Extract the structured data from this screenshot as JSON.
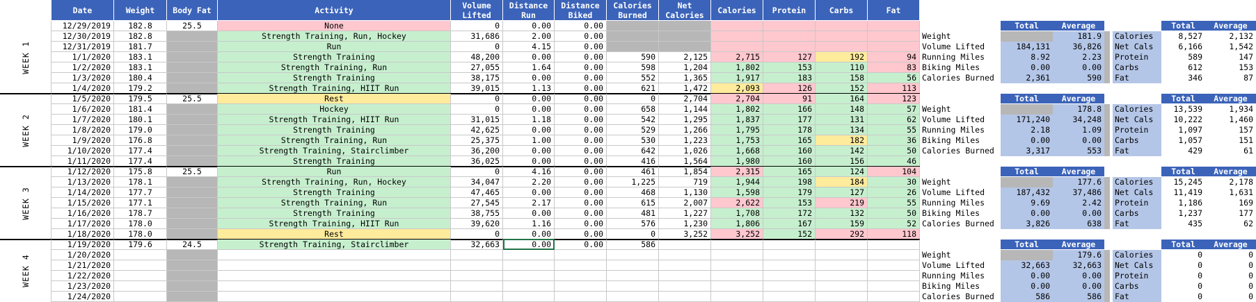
{
  "columns": [
    "Date",
    "Weight",
    "Body Fat",
    "Activity",
    "Volume\nLifted",
    "Distance\nRun",
    "Distance\nBiked",
    "Calories\nBurned",
    "Net\nCalories",
    "Calories",
    "Protein",
    "Carbs",
    "Fat"
  ],
  "weeks": [
    {
      "label": "WEEK 1",
      "rows": [
        {
          "date": "12/29/2019",
          "weight": "182.8",
          "bodyfat": "25.5",
          "activity": "None",
          "act_color": "red",
          "vol": "0",
          "run": "0.00",
          "bike": "0.00",
          "burn": "",
          "net": "",
          "cal": "",
          "pro": "",
          "carb": "",
          "fat": "",
          "burn_gray": true,
          "net_gray": true,
          "macro_colors": [
            "red",
            "red",
            "red",
            "red"
          ]
        },
        {
          "date": "12/30/2019",
          "weight": "182.8",
          "bodyfat": "",
          "activity": "Strength Training, Run, Hockey",
          "act_color": "green",
          "vol": "31,686",
          "run": "2.00",
          "bike": "0.00",
          "burn": "",
          "net": "",
          "cal": "",
          "pro": "",
          "carb": "",
          "fat": "",
          "burn_gray": true,
          "net_gray": true,
          "macro_colors": [
            "red",
            "red",
            "red",
            "red"
          ]
        },
        {
          "date": "12/31/2019",
          "weight": "181.7",
          "bodyfat": "",
          "activity": "Run",
          "act_color": "green",
          "vol": "0",
          "run": "4.15",
          "bike": "0.00",
          "burn": "",
          "net": "",
          "cal": "",
          "pro": "",
          "carb": "",
          "fat": "",
          "burn_gray": true,
          "net_gray": true,
          "macro_colors": [
            "red",
            "red",
            "red",
            "red"
          ]
        },
        {
          "date": "1/1/2020",
          "weight": "183.1",
          "bodyfat": "",
          "activity": "Strength Training",
          "act_color": "green",
          "vol": "48,200",
          "run": "0.00",
          "bike": "0.00",
          "burn": "590",
          "net": "2,125",
          "cal": "2,715",
          "pro": "127",
          "carb": "192",
          "fat": "94",
          "macro_colors": [
            "red",
            "red",
            "yellow",
            "red"
          ]
        },
        {
          "date": "1/2/2020",
          "weight": "183.1",
          "bodyfat": "",
          "activity": "Strength Training, Run",
          "act_color": "green",
          "vol": "27,055",
          "run": "1.64",
          "bike": "0.00",
          "burn": "598",
          "net": "1,204",
          "cal": "1,802",
          "pro": "153",
          "carb": "110",
          "fat": "83",
          "macro_colors": [
            "green",
            "green",
            "green",
            "red"
          ]
        },
        {
          "date": "1/3/2020",
          "weight": "180.4",
          "bodyfat": "",
          "activity": "Strength Training",
          "act_color": "green",
          "vol": "38,175",
          "run": "0.00",
          "bike": "0.00",
          "burn": "552",
          "net": "1,365",
          "cal": "1,917",
          "pro": "183",
          "carb": "158",
          "fat": "56",
          "macro_colors": [
            "green",
            "green",
            "green",
            "green"
          ]
        },
        {
          "date": "1/4/2020",
          "weight": "179.2",
          "bodyfat": "",
          "activity": "Strength Training, HIIT Run",
          "act_color": "green",
          "vol": "39,015",
          "run": "1.13",
          "bike": "0.00",
          "burn": "621",
          "net": "1,472",
          "cal": "2,093",
          "pro": "126",
          "carb": "152",
          "fat": "113",
          "macro_colors": [
            "yellow",
            "red",
            "green",
            "red"
          ]
        }
      ]
    },
    {
      "label": "WEEK 2",
      "rows": [
        {
          "date": "1/5/2020",
          "weight": "179.5",
          "bodyfat": "25.5",
          "activity": "Rest",
          "act_color": "yellow",
          "vol": "0",
          "run": "0.00",
          "bike": "0.00",
          "burn": "0",
          "net": "2,704",
          "cal": "2,704",
          "pro": "91",
          "carb": "164",
          "fat": "123",
          "macro_colors": [
            "red",
            "red",
            "green",
            "red"
          ]
        },
        {
          "date": "1/6/2020",
          "weight": "181.4",
          "bodyfat": "",
          "activity": "Hockey",
          "act_color": "green",
          "vol": "0",
          "run": "0.00",
          "bike": "0.00",
          "burn": "658",
          "net": "1,144",
          "cal": "1,802",
          "pro": "166",
          "carb": "148",
          "fat": "57",
          "macro_colors": [
            "green",
            "green",
            "green",
            "green"
          ]
        },
        {
          "date": "1/7/2020",
          "weight": "180.1",
          "bodyfat": "",
          "activity": "Strength Training, HIIT Run",
          "act_color": "green",
          "vol": "31,015",
          "run": "1.18",
          "bike": "0.00",
          "burn": "542",
          "net": "1,295",
          "cal": "1,837",
          "pro": "177",
          "carb": "131",
          "fat": "62",
          "macro_colors": [
            "green",
            "green",
            "green",
            "green"
          ]
        },
        {
          "date": "1/8/2020",
          "weight": "179.0",
          "bodyfat": "",
          "activity": "Strength Training",
          "act_color": "green",
          "vol": "42,625",
          "run": "0.00",
          "bike": "0.00",
          "burn": "529",
          "net": "1,266",
          "cal": "1,795",
          "pro": "178",
          "carb": "134",
          "fat": "55",
          "macro_colors": [
            "green",
            "green",
            "green",
            "green"
          ]
        },
        {
          "date": "1/9/2020",
          "weight": "176.8",
          "bodyfat": "",
          "activity": "Strength Training, Run",
          "act_color": "green",
          "vol": "25,375",
          "run": "1.00",
          "bike": "0.00",
          "burn": "530",
          "net": "1,223",
          "cal": "1,753",
          "pro": "165",
          "carb": "182",
          "fat": "36",
          "macro_colors": [
            "green",
            "green",
            "yellow",
            "green"
          ]
        },
        {
          "date": "1/10/2020",
          "weight": "177.4",
          "bodyfat": "",
          "activity": "Strength Training, Stairclimber",
          "act_color": "green",
          "vol": "36,200",
          "run": "0.00",
          "bike": "0.00",
          "burn": "642",
          "net": "1,026",
          "cal": "1,668",
          "pro": "160",
          "carb": "142",
          "fat": "50",
          "macro_colors": [
            "green",
            "green",
            "green",
            "green"
          ]
        },
        {
          "date": "1/11/2020",
          "weight": "177.4",
          "bodyfat": "",
          "activity": "Strength Training",
          "act_color": "green",
          "vol": "36,025",
          "run": "0.00",
          "bike": "0.00",
          "burn": "416",
          "net": "1,564",
          "cal": "1,980",
          "pro": "160",
          "carb": "156",
          "fat": "46",
          "macro_colors": [
            "green",
            "green",
            "green",
            "green"
          ]
        }
      ]
    },
    {
      "label": "WEEK 3",
      "rows": [
        {
          "date": "1/12/2020",
          "weight": "175.8",
          "bodyfat": "25.5",
          "activity": "Run",
          "act_color": "green",
          "vol": "0",
          "run": "4.16",
          "bike": "0.00",
          "burn": "461",
          "net": "1,854",
          "cal": "2,315",
          "pro": "165",
          "carb": "124",
          "fat": "104",
          "macro_colors": [
            "red",
            "green",
            "green",
            "red"
          ]
        },
        {
          "date": "1/13/2020",
          "weight": "178.1",
          "bodyfat": "",
          "activity": "Strength Training, Run, Hockey",
          "act_color": "green",
          "vol": "34,047",
          "run": "2.20",
          "bike": "0.00",
          "burn": "1,225",
          "net": "719",
          "cal": "1,944",
          "pro": "198",
          "carb": "184",
          "fat": "30",
          "macro_colors": [
            "green",
            "green",
            "yellow",
            "green"
          ]
        },
        {
          "date": "1/14/2020",
          "weight": "177.7",
          "bodyfat": "",
          "activity": "Strength Training",
          "act_color": "green",
          "vol": "47,465",
          "run": "0.00",
          "bike": "0.00",
          "burn": "468",
          "net": "1,130",
          "cal": "1,598",
          "pro": "179",
          "carb": "127",
          "fat": "26",
          "macro_colors": [
            "green",
            "green",
            "green",
            "green"
          ]
        },
        {
          "date": "1/15/2020",
          "weight": "177.1",
          "bodyfat": "",
          "activity": "Strength Training, Run",
          "act_color": "green",
          "vol": "27,545",
          "run": "2.17",
          "bike": "0.00",
          "burn": "615",
          "net": "2,007",
          "cal": "2,622",
          "pro": "153",
          "carb": "219",
          "fat": "55",
          "macro_colors": [
            "red",
            "green",
            "red",
            "green"
          ]
        },
        {
          "date": "1/16/2020",
          "weight": "178.7",
          "bodyfat": "",
          "activity": "Strength Training",
          "act_color": "green",
          "vol": "38,755",
          "run": "0.00",
          "bike": "0.00",
          "burn": "481",
          "net": "1,227",
          "cal": "1,708",
          "pro": "172",
          "carb": "132",
          "fat": "50",
          "macro_colors": [
            "green",
            "green",
            "green",
            "green"
          ]
        },
        {
          "date": "1/17/2020",
          "weight": "178.0",
          "bodyfat": "",
          "activity": "Strength Training, HIIT Run",
          "act_color": "green",
          "vol": "39,620",
          "run": "1.16",
          "bike": "0.00",
          "burn": "576",
          "net": "1,230",
          "cal": "1,806",
          "pro": "167",
          "carb": "159",
          "fat": "52",
          "macro_colors": [
            "green",
            "green",
            "green",
            "green"
          ]
        },
        {
          "date": "1/18/2020",
          "weight": "178.0",
          "bodyfat": "",
          "activity": "Rest",
          "act_color": "yellow",
          "vol": "0",
          "run": "0.00",
          "bike": "0.00",
          "burn": "0",
          "net": "3,252",
          "cal": "3,252",
          "pro": "152",
          "carb": "292",
          "fat": "118",
          "macro_colors": [
            "red",
            "green",
            "red",
            "red"
          ]
        }
      ]
    },
    {
      "label": "WEEK 4",
      "rows": [
        {
          "date": "1/19/2020",
          "weight": "179.6",
          "bodyfat": "24.5",
          "activity": "Strength Training, Stairclimber",
          "act_color": "green",
          "vol": "32,663",
          "run": "0.00",
          "bike": "0.00",
          "burn": "586",
          "net": "",
          "cal": "",
          "pro": "",
          "carb": "",
          "fat": "",
          "macro_colors": [
            "",
            "",
            "",
            ""
          ]
        },
        {
          "date": "1/20/2020",
          "weight": "",
          "bodyfat": "",
          "activity": "",
          "act_color": "",
          "vol": "",
          "run": "",
          "bike": "",
          "burn": "",
          "net": "",
          "cal": "",
          "pro": "",
          "carb": "",
          "fat": "",
          "macro_colors": [
            "",
            "",
            "",
            ""
          ]
        },
        {
          "date": "1/21/2020",
          "weight": "",
          "bodyfat": "",
          "activity": "",
          "act_color": "",
          "vol": "",
          "run": "",
          "bike": "",
          "burn": "",
          "net": "",
          "cal": "",
          "pro": "",
          "carb": "",
          "fat": "",
          "macro_colors": [
            "",
            "",
            "",
            ""
          ]
        },
        {
          "date": "1/22/2020",
          "weight": "",
          "bodyfat": "",
          "activity": "",
          "act_color": "",
          "vol": "",
          "run": "",
          "bike": "",
          "burn": "",
          "net": "",
          "cal": "",
          "pro": "",
          "carb": "",
          "fat": "",
          "macro_colors": [
            "",
            "",
            "",
            ""
          ]
        },
        {
          "date": "1/23/2020",
          "weight": "",
          "bodyfat": "",
          "activity": "",
          "act_color": "",
          "vol": "",
          "run": "",
          "bike": "",
          "burn": "",
          "net": "",
          "cal": "",
          "pro": "",
          "carb": "",
          "fat": "",
          "macro_colors": [
            "",
            "",
            "",
            ""
          ]
        },
        {
          "date": "1/24/2020",
          "weight": "",
          "bodyfat": "",
          "activity": "",
          "act_color": "",
          "vol": "",
          "run": "",
          "bike": "",
          "burn": "",
          "net": "",
          "cal": "",
          "pro": "",
          "carb": "",
          "fat": "",
          "macro_colors": [
            "",
            "",
            "",
            ""
          ]
        }
      ]
    }
  ],
  "summary_headers": {
    "total": "Total",
    "average": "Average"
  },
  "summaries": [
    {
      "left": [
        [
          "Weight",
          "",
          "181.9"
        ],
        [
          "Volume Lifted",
          "184,131",
          "36,826"
        ],
        [
          "Running Miles",
          "8.92",
          "2.23"
        ],
        [
          "Biking Miles",
          "0.00",
          "0.00"
        ],
        [
          "Calories Burned",
          "2,361",
          "590"
        ]
      ],
      "right": [
        [
          "Calories",
          "8,527",
          "2,132"
        ],
        [
          "Net Cals",
          "6,166",
          "1,542"
        ],
        [
          "Protein",
          "589",
          "147"
        ],
        [
          "Carbs",
          "612",
          "153"
        ],
        [
          "Fat",
          "346",
          "87"
        ]
      ]
    },
    {
      "left": [
        [
          "Weight",
          "",
          "178.8"
        ],
        [
          "Volume Lifted",
          "171,240",
          "34,248"
        ],
        [
          "Running Miles",
          "2.18",
          "1.09"
        ],
        [
          "Biking Miles",
          "0.00",
          "0.00"
        ],
        [
          "Calories Burned",
          "3,317",
          "553"
        ]
      ],
      "right": [
        [
          "Calories",
          "13,539",
          "1,934"
        ],
        [
          "Net Cals",
          "10,222",
          "1,460"
        ],
        [
          "Protein",
          "1,097",
          "157"
        ],
        [
          "Carbs",
          "1,057",
          "151"
        ],
        [
          "Fat",
          "429",
          "61"
        ]
      ]
    },
    {
      "left": [
        [
          "Weight",
          "",
          "177.6"
        ],
        [
          "Volume Lifted",
          "187,432",
          "37,486"
        ],
        [
          "Running Miles",
          "9.69",
          "2.42"
        ],
        [
          "Biking Miles",
          "0.00",
          "0.00"
        ],
        [
          "Calories Burned",
          "3,826",
          "638"
        ]
      ],
      "right": [
        [
          "Calories",
          "15,245",
          "2,178"
        ],
        [
          "Net Cals",
          "11,419",
          "1,631"
        ],
        [
          "Protein",
          "1,186",
          "169"
        ],
        [
          "Carbs",
          "1,237",
          "177"
        ],
        [
          "Fat",
          "435",
          "62"
        ]
      ]
    },
    {
      "left": [
        [
          "Weight",
          "",
          "179.6"
        ],
        [
          "Volume Lifted",
          "32,663",
          "32,663"
        ],
        [
          "Running Miles",
          "0.00",
          "0.00"
        ],
        [
          "Biking Miles",
          "0.00",
          "0.00"
        ],
        [
          "Calories Burned",
          "586",
          "586"
        ]
      ],
      "right": [
        [
          "Calories",
          "0",
          "0"
        ],
        [
          "Net Cals",
          "0",
          "0"
        ],
        [
          "Protein",
          "0",
          "0"
        ],
        [
          "Carbs",
          "0",
          "0"
        ],
        [
          "Fat",
          "0",
          "0"
        ]
      ]
    }
  ]
}
